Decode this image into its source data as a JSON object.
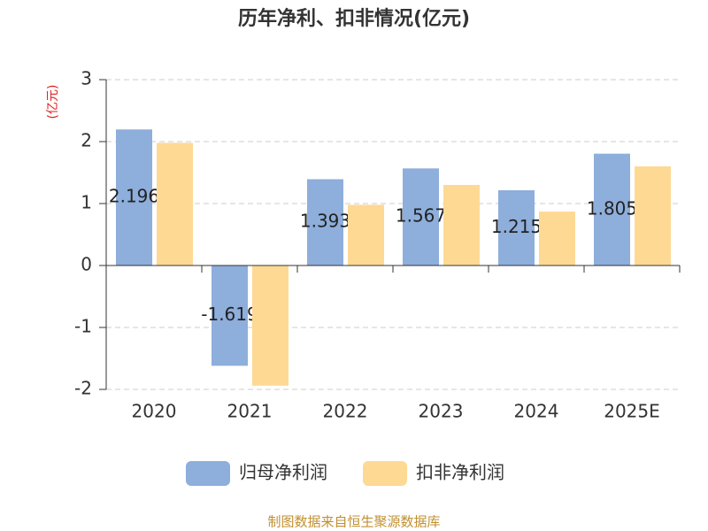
{
  "chart_data": {
    "type": "bar",
    "title": "历年净利、扣非情况(亿元)",
    "y_label": "(亿元)",
    "y_label_color": "#e02020",
    "categories": [
      "2020",
      "2021",
      "2022",
      "2023",
      "2024",
      "2025E"
    ],
    "series": [
      {
        "name": "归母净利润",
        "color": "#8eaedb",
        "values": [
          2.196,
          -1.619,
          1.393,
          1.567,
          1.215,
          1.805
        ],
        "labels": true
      },
      {
        "name": "扣非净利润",
        "color": "#fed994",
        "values": [
          1.98,
          -1.94,
          0.98,
          1.3,
          0.87,
          1.6
        ],
        "labels": false
      }
    ],
    "ylim": [
      -2,
      3
    ],
    "yticks": [
      -2,
      -1,
      0,
      1,
      2,
      3
    ],
    "grid": true,
    "source": "制图数据来自恒生聚源数据库"
  }
}
